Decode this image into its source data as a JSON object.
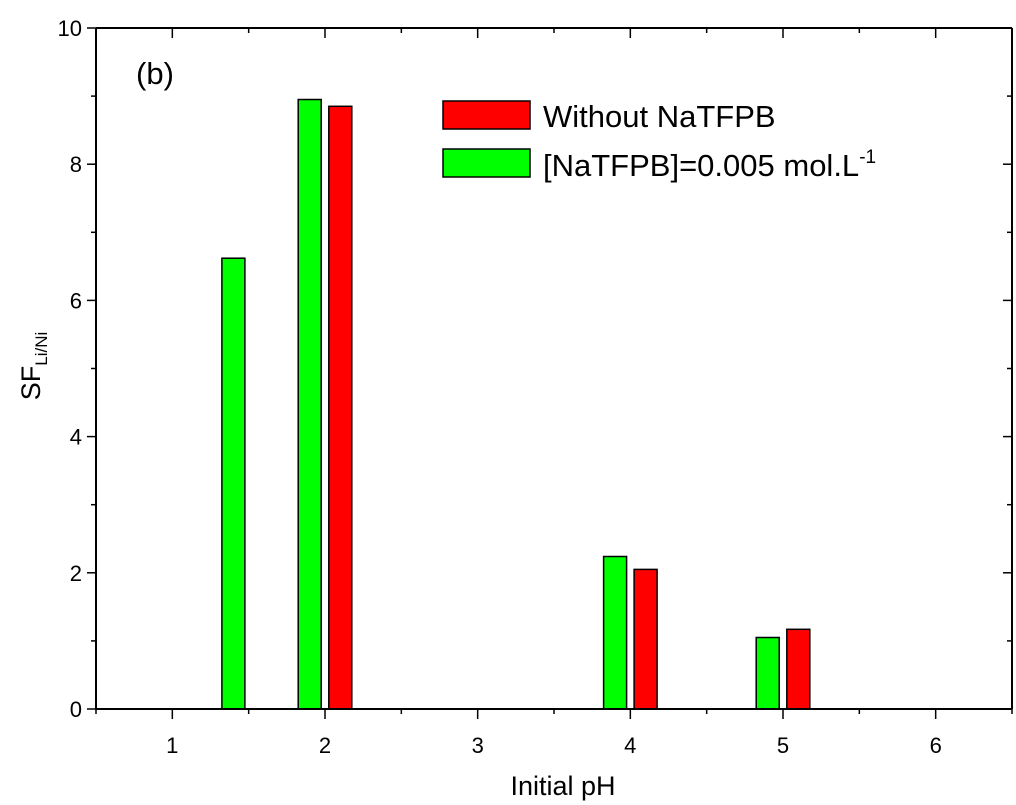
{
  "chart_data": {
    "type": "bar",
    "panel_label": "(b)",
    "xlabel": "Initial pH",
    "ylabel": {
      "main": "SF",
      "subscript": "Li/Ni"
    },
    "xlim": [
      0.5,
      6.5
    ],
    "ylim": [
      0,
      10
    ],
    "x_ticks": [
      "1",
      "2",
      "3",
      "4",
      "5",
      "6"
    ],
    "y_ticks": [
      "0",
      "2",
      "4",
      "6",
      "8",
      "10"
    ],
    "legend_position": "top-right",
    "series": [
      {
        "name": "Without NaTFPB",
        "color": "#ff0000",
        "x": [
          2.1,
          4.1,
          5.1
        ],
        "values": [
          8.85,
          2.05,
          1.17
        ]
      },
      {
        "name": "[NaTFPB]=0.005 mol.L",
        "name_superscript": "-1",
        "color": "#00ff00",
        "x": [
          1.4,
          1.9,
          3.9,
          4.9
        ],
        "values": [
          6.62,
          8.95,
          2.24,
          1.05
        ]
      }
    ]
  }
}
